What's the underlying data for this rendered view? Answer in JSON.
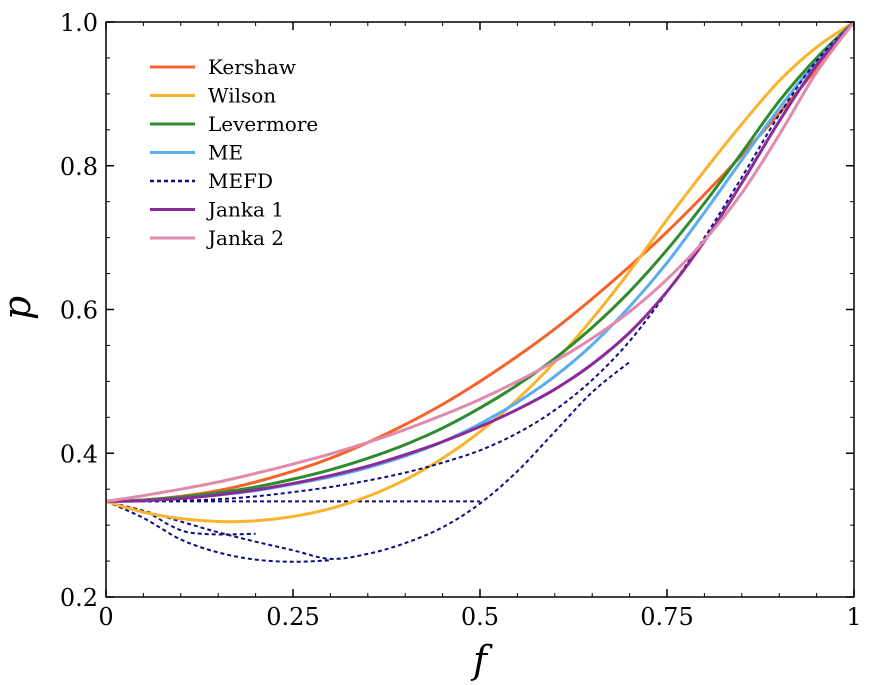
{
  "chart_data": {
    "type": "line",
    "title": "",
    "xlabel": "f",
    "ylabel": "p",
    "xlim": [
      0,
      1
    ],
    "ylim": [
      0.2,
      1.0
    ],
    "grid": false,
    "legend_position": "top-left",
    "x_ticks": [
      {
        "value": 0,
        "label": "0"
      },
      {
        "value": 0.25,
        "label": "0.25"
      },
      {
        "value": 0.5,
        "label": "0.5"
      },
      {
        "value": 0.75,
        "label": "0.75"
      },
      {
        "value": 1,
        "label": "1"
      }
    ],
    "y_ticks": [
      {
        "value": 0.2,
        "label": "0.2"
      },
      {
        "value": 0.4,
        "label": "0.4"
      },
      {
        "value": 0.6,
        "label": "0.6"
      },
      {
        "value": 0.8,
        "label": "0.8"
      },
      {
        "value": 1.0,
        "label": "1.0"
      }
    ],
    "x": [
      0,
      0.05,
      0.1,
      0.15,
      0.2,
      0.25,
      0.3,
      0.35,
      0.4,
      0.45,
      0.5,
      0.55,
      0.6,
      0.65,
      0.7,
      0.75,
      0.8,
      0.85,
      0.9,
      0.95,
      1.0
    ],
    "series": [
      {
        "name": "Kershaw",
        "color": "#f4632a",
        "dash": "solid",
        "y": [
          0.333,
          0.335,
          0.34,
          0.348,
          0.36,
          0.375,
          0.393,
          0.415,
          0.44,
          0.468,
          0.5,
          0.535,
          0.573,
          0.615,
          0.66,
          0.708,
          0.76,
          0.815,
          0.873,
          0.935,
          1.0
        ]
      },
      {
        "name": "Wilson",
        "color": "#f9b32c",
        "dash": "solid",
        "y": [
          0.333,
          0.318,
          0.309,
          0.305,
          0.306,
          0.312,
          0.323,
          0.34,
          0.363,
          0.393,
          0.43,
          0.475,
          0.527,
          0.587,
          0.653,
          0.725,
          0.793,
          0.858,
          0.918,
          0.965,
          1.0
        ]
      },
      {
        "name": "Levermore",
        "color": "#2e8b2e",
        "dash": "solid",
        "y": [
          0.333,
          0.335,
          0.339,
          0.345,
          0.353,
          0.364,
          0.377,
          0.393,
          0.412,
          0.435,
          0.463,
          0.495,
          0.532,
          0.575,
          0.625,
          0.683,
          0.748,
          0.818,
          0.89,
          0.95,
          1.0
        ]
      },
      {
        "name": "ME",
        "color": "#5aaef0",
        "dash": "solid",
        "y": [
          0.333,
          0.334,
          0.337,
          0.342,
          0.348,
          0.357,
          0.367,
          0.38,
          0.396,
          0.416,
          0.441,
          0.471,
          0.507,
          0.551,
          0.604,
          0.665,
          0.735,
          0.808,
          0.88,
          0.945,
          1.0
        ]
      },
      {
        "name": "MEFD",
        "color": "#0d0d80",
        "dash": "dotted",
        "y": [
          0.333,
          0.333,
          0.334,
          0.336,
          0.34,
          0.346,
          0.353,
          0.362,
          0.373,
          0.387,
          0.404,
          0.428,
          0.46,
          0.502,
          0.556,
          0.624,
          0.7,
          0.784,
          0.871,
          0.946,
          1.0
        ]
      },
      {
        "name": "Janka 1",
        "color": "#8b2a9a",
        "dash": "solid",
        "y": [
          0.333,
          0.334,
          0.337,
          0.342,
          0.349,
          0.358,
          0.369,
          0.382,
          0.398,
          0.416,
          0.437,
          0.461,
          0.489,
          0.524,
          0.568,
          0.625,
          0.695,
          0.776,
          0.862,
          0.94,
          1.0
        ]
      },
      {
        "name": "Janka 2",
        "color": "#e08aad",
        "dash": "solid",
        "y": [
          0.333,
          0.341,
          0.35,
          0.36,
          0.372,
          0.385,
          0.399,
          0.415,
          0.433,
          0.453,
          0.475,
          0.5,
          0.528,
          0.56,
          0.597,
          0.642,
          0.696,
          0.762,
          0.843,
          0.93,
          1.0
        ]
      }
    ],
    "extra_dotted_curves": [
      {
        "color": "#0d0d80",
        "points": [
          [
            0,
            0.333
          ],
          [
            0.1,
            0.333
          ],
          [
            0.2,
            0.333
          ],
          [
            0.3,
            0.333
          ],
          [
            0.4,
            0.333
          ],
          [
            0.5,
            0.333
          ]
        ]
      },
      {
        "color": "#0d0d80",
        "points": [
          [
            0,
            0.333
          ],
          [
            0.05,
            0.32
          ],
          [
            0.1,
            0.305
          ],
          [
            0.15,
            0.29
          ],
          [
            0.2,
            0.277
          ],
          [
            0.25,
            0.265
          ],
          [
            0.3,
            0.253
          ],
          [
            0.35,
            0.26
          ],
          [
            0.4,
            0.275
          ],
          [
            0.45,
            0.297
          ],
          [
            0.5,
            0.33
          ],
          [
            0.55,
            0.375
          ],
          [
            0.6,
            0.43
          ],
          [
            0.65,
            0.485
          ],
          [
            0.7,
            0.527
          ]
        ]
      },
      {
        "color": "#0d0d80",
        "points": [
          [
            0,
            0.333
          ],
          [
            0.05,
            0.31
          ],
          [
            0.1,
            0.28
          ],
          [
            0.15,
            0.262
          ],
          [
            0.2,
            0.252
          ],
          [
            0.25,
            0.249
          ],
          [
            0.3,
            0.251
          ]
        ]
      },
      {
        "color": "#0d0d80",
        "points": [
          [
            0,
            0.333
          ],
          [
            0.03,
            0.325
          ],
          [
            0.06,
            0.315
          ],
          [
            0.085,
            0.3
          ],
          [
            0.11,
            0.29
          ],
          [
            0.15,
            0.287
          ],
          [
            0.2,
            0.288
          ]
        ]
      }
    ]
  }
}
